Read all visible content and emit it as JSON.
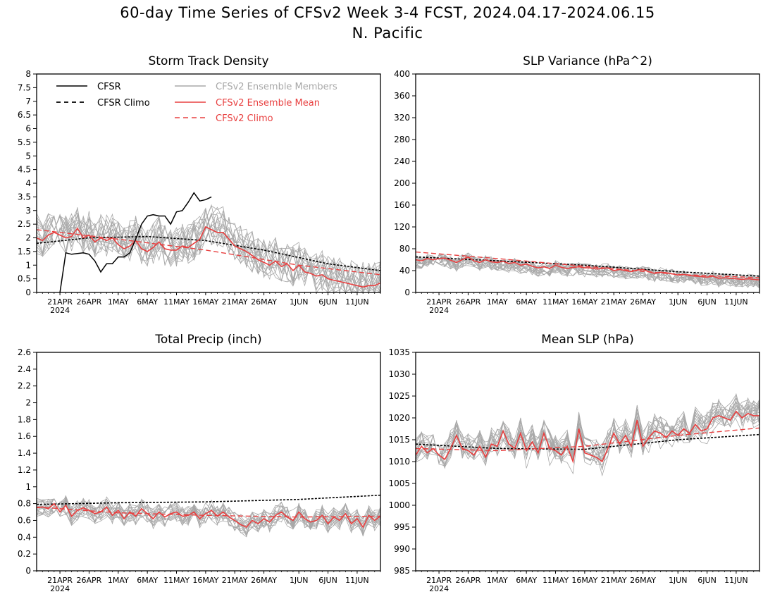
{
  "page": {
    "title": "60-day Time Series of CFSv2 Week 3-4 FCST, 2024.04.17-2024.06.15",
    "subtitle": "N. Pacific"
  },
  "colors": {
    "cfsr": "#000000",
    "ensemble_member": "#a8a8a8",
    "ensemble_mean": "#e84040",
    "cfsv2_climo": "#e84040"
  },
  "legend": {
    "placement": "top-left of first panel",
    "entries": [
      "CFSR",
      "CFSR Climo",
      "CFSv2 Ensemble Members",
      "CFSv2 Ensemble Mean",
      "CFSv2 Climo"
    ]
  },
  "x_axis": {
    "start_date": "2024-04-17",
    "end_date": "2024-06-15",
    "tick_labels": [
      "21APR",
      "26APR",
      "1MAY",
      "6MAY",
      "11MAY",
      "16MAY",
      "21MAY",
      "26MAY",
      "1JUN",
      "6JUN",
      "11JUN"
    ],
    "tick_dates": [
      "2024-04-21",
      "2024-04-26",
      "2024-05-01",
      "2024-05-06",
      "2024-05-11",
      "2024-05-16",
      "2024-05-21",
      "2024-05-26",
      "2024-06-01",
      "2024-06-06",
      "2024-06-11"
    ],
    "year_label": "2024"
  },
  "chart_data": [
    {
      "type": "line",
      "title": "Storm Track Density",
      "ylim": [
        0,
        8
      ],
      "yticks": [
        "0",
        "0.5",
        "1",
        "1.5",
        "2",
        "2.5",
        "3",
        "3.5",
        "4",
        "4.5",
        "5",
        "5.5",
        "6",
        "6.5",
        "7",
        "7.5",
        "8"
      ],
      "ensemble_members": {
        "count": 16,
        "center": "ensemble mean",
        "spread": 0.75,
        "min": 0
      },
      "series": [
        {
          "name": "CFSR",
          "style": "solid-black",
          "points": [
            [
              "2024-04-21",
              0
            ],
            [
              "2024-04-22",
              1.45
            ],
            [
              "2024-04-23",
              1.4
            ],
            [
              "2024-04-25",
              1.45
            ],
            [
              "2024-04-26",
              1.4
            ],
            [
              "2024-04-27",
              1.15
            ],
            [
              "2024-04-28",
              0.75
            ],
            [
              "2024-04-29",
              1.05
            ],
            [
              "2024-04-30",
              1.05
            ],
            [
              "2024-05-01",
              1.3
            ],
            [
              "2024-05-02",
              1.3
            ],
            [
              "2024-05-03",
              1.45
            ],
            [
              "2024-05-04",
              1.95
            ],
            [
              "2024-05-05",
              2.5
            ],
            [
              "2024-05-06",
              2.8
            ],
            [
              "2024-05-07",
              2.85
            ],
            [
              "2024-05-08",
              2.8
            ],
            [
              "2024-05-09",
              2.8
            ],
            [
              "2024-05-10",
              2.5
            ],
            [
              "2024-05-11",
              2.95
            ],
            [
              "2024-05-12",
              3.0
            ],
            [
              "2024-05-13",
              3.3
            ],
            [
              "2024-05-14",
              3.65
            ],
            [
              "2024-05-15",
              3.35
            ],
            [
              "2024-05-16",
              3.4
            ],
            [
              "2024-05-17",
              3.5
            ]
          ]
        },
        {
          "name": "CFSR Climo",
          "style": "dashed-black",
          "points": [
            [
              "2024-04-17",
              1.8
            ],
            [
              "2024-04-26",
              2.0
            ],
            [
              "2024-05-06",
              2.05
            ],
            [
              "2024-05-16",
              1.9
            ],
            [
              "2024-05-26",
              1.55
            ],
            [
              "2024-06-06",
              1.05
            ],
            [
              "2024-06-15",
              0.8
            ]
          ]
        },
        {
          "name": "CFSv2 Ensemble Mean",
          "style": "solid-red",
          "values": [
            2.0,
            1.9,
            2.1,
            2.2,
            2.1,
            2.0,
            2.05,
            2.35,
            2.0,
            2.1,
            1.85,
            2.0,
            1.9,
            2.0,
            1.75,
            1.6,
            1.7,
            1.9,
            1.6,
            1.5,
            1.65,
            1.85,
            1.6,
            1.55,
            1.55,
            1.7,
            1.65,
            1.8,
            1.95,
            2.4,
            2.3,
            2.2,
            2.2,
            1.95,
            1.7,
            1.6,
            1.5,
            1.35,
            1.2,
            1.1,
            1.0,
            1.15,
            0.95,
            1.05,
            0.8,
            1.0,
            0.75,
            0.7,
            0.6,
            0.65,
            0.5,
            0.45,
            0.4,
            0.35,
            0.3,
            0.25,
            0.2,
            0.25,
            0.25,
            0.35
          ]
        },
        {
          "name": "CFSv2 Climo",
          "style": "dashed-red",
          "points": [
            [
              "2024-04-17",
              2.3
            ],
            [
              "2024-05-01",
              1.95
            ],
            [
              "2024-05-16",
              1.55
            ],
            [
              "2024-06-01",
              1.0
            ],
            [
              "2024-06-15",
              0.65
            ]
          ]
        }
      ]
    },
    {
      "type": "line",
      "title": "SLP Variance (hPa^2)",
      "ylim": [
        0,
        400
      ],
      "yticks": [
        "0",
        "40",
        "80",
        "120",
        "160",
        "200",
        "240",
        "280",
        "320",
        "360",
        "400"
      ],
      "ensemble_members": {
        "count": 16,
        "center": "ensemble mean",
        "spread": 12,
        "min": 0
      },
      "series": [
        {
          "name": "CFSR Climo",
          "style": "dashed-black",
          "points": [
            [
              "2024-04-17",
              65
            ],
            [
              "2024-05-01",
              58
            ],
            [
              "2024-05-16",
              50
            ],
            [
              "2024-06-01",
              38
            ],
            [
              "2024-06-15",
              30
            ]
          ]
        },
        {
          "name": "CFSv2 Ensemble Mean",
          "style": "solid-red",
          "values": [
            60,
            58,
            62,
            60,
            62,
            63,
            59,
            55,
            60,
            65,
            58,
            55,
            60,
            56,
            55,
            57,
            53,
            55,
            50,
            52,
            48,
            45,
            47,
            44,
            50,
            46,
            44,
            46,
            47,
            45,
            45,
            43,
            44,
            45,
            40,
            42,
            40,
            38,
            41,
            42,
            38,
            35,
            37,
            36,
            34,
            32,
            33,
            31,
            30,
            29,
            28,
            30,
            26,
            27,
            26,
            25,
            24,
            25,
            24,
            23
          ]
        },
        {
          "name": "CFSv2 Climo",
          "style": "dashed-red",
          "points": [
            [
              "2024-04-17",
              74
            ],
            [
              "2024-05-01",
              62
            ],
            [
              "2024-05-16",
              48
            ],
            [
              "2024-06-01",
              33
            ],
            [
              "2024-06-15",
              27
            ]
          ]
        }
      ]
    },
    {
      "type": "line",
      "title": "Total Precip (inch)",
      "ylim": [
        0,
        2.6
      ],
      "yticks": [
        "0",
        "0.2",
        "0.4",
        "0.6",
        "0.8",
        "1",
        "1.2",
        "1.4",
        "1.6",
        "1.8",
        "2",
        "2.2",
        "2.4",
        "2.6"
      ],
      "ensemble_members": {
        "count": 16,
        "center": "ensemble mean",
        "spread": 0.12,
        "min": 0
      },
      "series": [
        {
          "name": "CFSR Climo",
          "style": "dashed-black",
          "points": [
            [
              "2024-04-17",
              0.79
            ],
            [
              "2024-05-01",
              0.81
            ],
            [
              "2024-05-16",
              0.82
            ],
            [
              "2024-06-01",
              0.85
            ],
            [
              "2024-06-15",
              0.9
            ]
          ]
        },
        {
          "name": "CFSv2 Ensemble Mean",
          "style": "solid-red",
          "values": [
            0.75,
            0.76,
            0.74,
            0.8,
            0.7,
            0.78,
            0.65,
            0.72,
            0.75,
            0.72,
            0.68,
            0.7,
            0.76,
            0.66,
            0.72,
            0.62,
            0.7,
            0.65,
            0.74,
            0.68,
            0.62,
            0.7,
            0.64,
            0.68,
            0.7,
            0.65,
            0.66,
            0.7,
            0.62,
            0.68,
            0.72,
            0.65,
            0.7,
            0.64,
            0.6,
            0.55,
            0.52,
            0.6,
            0.56,
            0.62,
            0.58,
            0.66,
            0.7,
            0.64,
            0.6,
            0.7,
            0.62,
            0.58,
            0.6,
            0.66,
            0.56,
            0.64,
            0.6,
            0.68,
            0.56,
            0.62,
            0.52,
            0.66,
            0.6,
            0.65
          ]
        },
        {
          "name": "CFSv2 Climo",
          "style": "dashed-red",
          "points": [
            [
              "2024-04-17",
              0.76
            ],
            [
              "2024-05-01",
              0.69
            ],
            [
              "2024-05-16",
              0.66
            ],
            [
              "2024-06-01",
              0.64
            ],
            [
              "2024-06-15",
              0.65
            ]
          ]
        }
      ]
    },
    {
      "type": "line",
      "title": "Mean SLP (hPa)",
      "ylim": [
        985,
        1035
      ],
      "yticks": [
        "985",
        "990",
        "995",
        "1000",
        "1005",
        "1010",
        "1015",
        "1020",
        "1025",
        "1030",
        "1035"
      ],
      "ensemble_members": {
        "count": 16,
        "center": "ensemble mean",
        "spread": 3,
        "min": 985
      },
      "series": [
        {
          "name": "CFSR Climo",
          "style": "dashed-black",
          "points": [
            [
              "2024-04-17",
              1014.0
            ],
            [
              "2024-05-01",
              1013.0
            ],
            [
              "2024-05-16",
              1012.8
            ],
            [
              "2024-06-01",
              1015.0
            ],
            [
              "2024-06-15",
              1016.2
            ]
          ]
        },
        {
          "name": "CFSv2 Ensemble Mean",
          "style": "solid-red",
          "values": [
            1011.5,
            1013.5,
            1012.0,
            1013.0,
            1011.5,
            1010.5,
            1013.0,
            1016.0,
            1013.0,
            1012.5,
            1011.5,
            1013.5,
            1011.0,
            1014.0,
            1013.5,
            1017.0,
            1014.0,
            1013.0,
            1016.5,
            1012.5,
            1014.5,
            1012.0,
            1016.5,
            1013.0,
            1012.5,
            1011.5,
            1013.5,
            1010.0,
            1017.5,
            1012.0,
            1011.5,
            1011.0,
            1010.0,
            1013.0,
            1016.5,
            1014.0,
            1016.0,
            1013.5,
            1019.5,
            1013.5,
            1015.5,
            1017.0,
            1016.5,
            1015.5,
            1017.0,
            1016.0,
            1017.5,
            1016.5,
            1018.5,
            1017.0,
            1017.5,
            1020.0,
            1020.5,
            1020.0,
            1019.5,
            1021.5,
            1020.0,
            1021.0,
            1020.5,
            1020.5
          ]
        },
        {
          "name": "CFSv2 Climo",
          "style": "dashed-red",
          "points": [
            [
              "2024-04-17",
              1013.0
            ],
            [
              "2024-05-01",
              1012.5
            ],
            [
              "2024-05-16",
              1013.5
            ],
            [
              "2024-06-01",
              1016.0
            ],
            [
              "2024-06-15",
              1017.7
            ]
          ]
        }
      ]
    }
  ]
}
